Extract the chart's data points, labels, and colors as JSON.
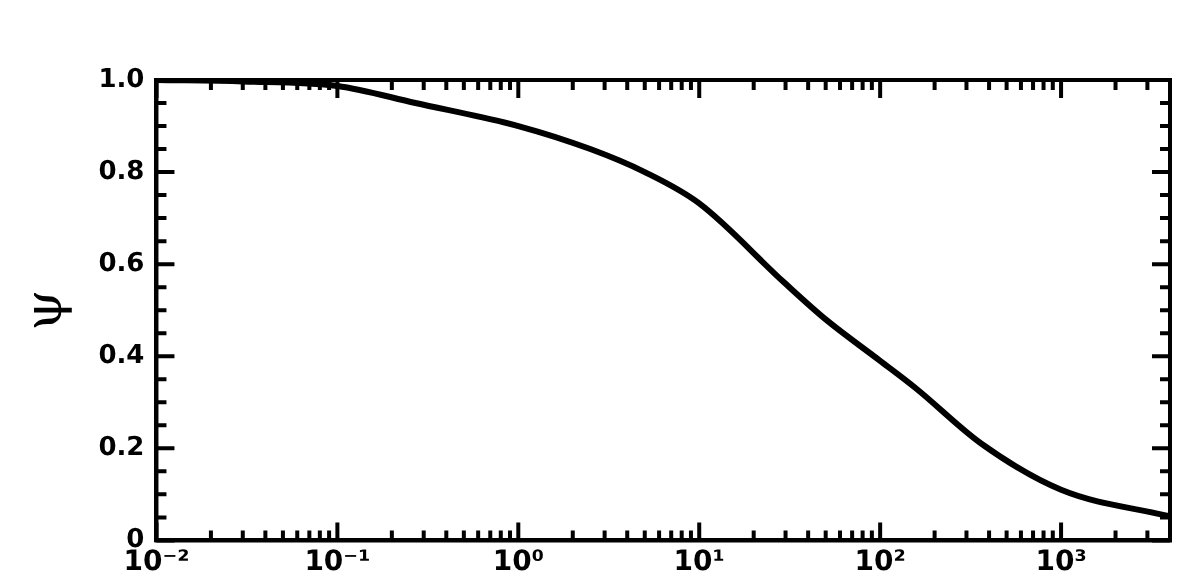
{
  "chart_data": {
    "type": "line",
    "ylabel": "ψ",
    "x": [
      0.01,
      0.03,
      0.1,
      0.27,
      1,
      2.5,
      5,
      10,
      29.5,
      50,
      100,
      158,
      363,
      1000,
      4000
    ],
    "series": [
      {
        "color": "#000000",
        "values": [
          1.0,
          0.997,
          0.987,
          0.95,
          0.9,
          0.85,
          0.8,
          0.732,
          0.56,
          0.48,
          0.39,
          0.33,
          0.21,
          0.11,
          0.052
        ]
      }
    ],
    "log": "x",
    "xlim": [
      0.01,
      4000
    ],
    "ylim": [
      0,
      1.0
    ],
    "xticks": [
      {
        "value": 0.01,
        "label": "10⁻²"
      },
      {
        "value": 0.02,
        "label": null
      },
      {
        "value": 0.03,
        "label": null
      },
      {
        "value": 0.04,
        "label": null
      },
      {
        "value": 0.05,
        "label": null
      },
      {
        "value": 0.06,
        "label": null
      },
      {
        "value": 0.07,
        "label": null
      },
      {
        "value": 0.08,
        "label": null
      },
      {
        "value": 0.09,
        "label": null
      },
      {
        "value": 0.1,
        "label": "10⁻¹"
      },
      {
        "value": 0.2,
        "label": null
      },
      {
        "value": 0.3,
        "label": null
      },
      {
        "value": 0.4,
        "label": null
      },
      {
        "value": 0.5,
        "label": null
      },
      {
        "value": 0.6,
        "label": null
      },
      {
        "value": 0.7,
        "label": null
      },
      {
        "value": 0.8,
        "label": null
      },
      {
        "value": 0.9,
        "label": null
      },
      {
        "value": 1,
        "label": "10⁰"
      },
      {
        "value": 2,
        "label": null
      },
      {
        "value": 3,
        "label": null
      },
      {
        "value": 4,
        "label": null
      },
      {
        "value": 5,
        "label": null
      },
      {
        "value": 6,
        "label": null
      },
      {
        "value": 7,
        "label": null
      },
      {
        "value": 8,
        "label": null
      },
      {
        "value": 9,
        "label": null
      },
      {
        "value": 10,
        "label": "10¹"
      },
      {
        "value": 20,
        "label": null
      },
      {
        "value": 30,
        "label": null
      },
      {
        "value": 40,
        "label": null
      },
      {
        "value": 50,
        "label": null
      },
      {
        "value": 60,
        "label": null
      },
      {
        "value": 70,
        "label": null
      },
      {
        "value": 80,
        "label": null
      },
      {
        "value": 90,
        "label": null
      },
      {
        "value": 100,
        "label": "10²"
      },
      {
        "value": 200,
        "label": null
      },
      {
        "value": 300,
        "label": null
      },
      {
        "value": 400,
        "label": null
      },
      {
        "value": 500,
        "label": null
      },
      {
        "value": 600,
        "label": null
      },
      {
        "value": 700,
        "label": null
      },
      {
        "value": 800,
        "label": null
      },
      {
        "value": 900,
        "label": null
      },
      {
        "value": 1000,
        "label": "10³"
      },
      {
        "value": 2000,
        "label": null
      },
      {
        "value": 3000,
        "label": null
      },
      {
        "value": 4000,
        "label": null
      }
    ],
    "yticks": [
      {
        "value": 0,
        "label": "0"
      },
      {
        "value": 0.05,
        "label": null
      },
      {
        "value": 0.1,
        "label": null
      },
      {
        "value": 0.15,
        "label": null
      },
      {
        "value": 0.2,
        "label": "0.2"
      },
      {
        "value": 0.25,
        "label": null
      },
      {
        "value": 0.3,
        "label": null
      },
      {
        "value": 0.35,
        "label": null
      },
      {
        "value": 0.4,
        "label": "0.4"
      },
      {
        "value": 0.45,
        "label": null
      },
      {
        "value": 0.5,
        "label": null
      },
      {
        "value": 0.55,
        "label": null
      },
      {
        "value": 0.6,
        "label": "0.6"
      },
      {
        "value": 0.65,
        "label": null
      },
      {
        "value": 0.7,
        "label": null
      },
      {
        "value": 0.75,
        "label": null
      },
      {
        "value": 0.8,
        "label": "0.8"
      },
      {
        "value": 0.85,
        "label": null
      },
      {
        "value": 0.9,
        "label": null
      },
      {
        "value": 0.95,
        "label": null
      },
      {
        "value": 1.0,
        "label": "1.0"
      }
    ],
    "grid": false,
    "legend": false,
    "marker": "none",
    "line_style": "solid"
  }
}
